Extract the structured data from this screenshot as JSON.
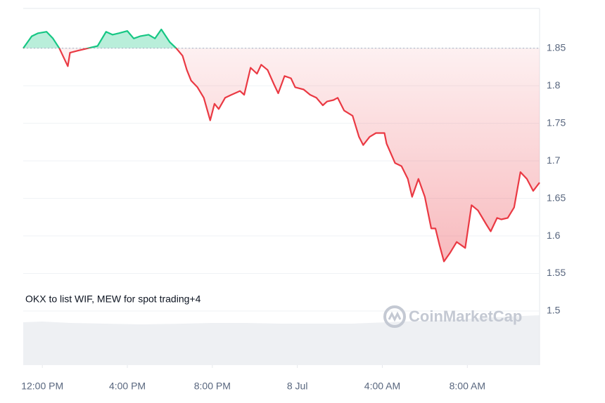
{
  "chart_data": {
    "type": "line",
    "annotation": "OKX to list WIF, MEW for spot trading+4",
    "watermark": "CoinMarketCap",
    "up_color": "#16c784",
    "down_color": "#ea3943",
    "baseline": 1.85,
    "grid": true,
    "xlim": [
      -0.9,
      23.4
    ],
    "xticks": [
      {
        "value": 0,
        "label": "12:00 PM"
      },
      {
        "value": 4,
        "label": "4:00 PM"
      },
      {
        "value": 8,
        "label": "8:00 PM"
      },
      {
        "value": 12,
        "label": "8 Jul"
      },
      {
        "value": 16,
        "label": "4:00 AM"
      },
      {
        "value": 20,
        "label": "8:00 AM"
      }
    ],
    "ylim": [
      1.428,
      1.903
    ],
    "yticks": [
      1.5,
      1.55,
      1.6,
      1.65,
      1.7,
      1.75,
      1.8,
      1.85
    ],
    "x": [
      -0.9,
      -0.5,
      -0.2,
      0.2,
      0.5,
      0.8,
      1.2,
      1.3,
      1.7,
      2.0,
      2.3,
      2.6,
      3.0,
      3.3,
      3.6,
      4.0,
      4.3,
      4.6,
      5.0,
      5.3,
      5.6,
      6.0,
      6.3,
      6.6,
      6.8,
      7.0,
      7.3,
      7.6,
      7.9,
      8.1,
      8.3,
      8.6,
      8.9,
      9.3,
      9.5,
      9.8,
      10.1,
      10.3,
      10.6,
      10.9,
      11.1,
      11.4,
      11.7,
      11.9,
      12.3,
      12.6,
      12.9,
      13.2,
      13.4,
      13.7,
      13.9,
      14.2,
      14.6,
      14.9,
      15.1,
      15.4,
      15.7,
      16.1,
      16.2,
      16.6,
      16.9,
      17.2,
      17.4,
      17.7,
      18.0,
      18.3,
      18.5,
      18.7,
      18.9,
      19.2,
      19.5,
      19.9,
      20.2,
      20.5,
      20.9,
      21.1,
      21.4,
      21.6,
      21.9,
      22.2,
      22.5,
      22.8,
      23.1,
      23.4
    ],
    "values": [
      1.85,
      1.866,
      1.87,
      1.872,
      1.863,
      1.85,
      1.826,
      1.844,
      1.847,
      1.849,
      1.851,
      1.853,
      1.872,
      1.868,
      1.87,
      1.873,
      1.863,
      1.866,
      1.868,
      1.863,
      1.875,
      1.858,
      1.85,
      1.84,
      1.821,
      1.807,
      1.798,
      1.784,
      1.754,
      1.776,
      1.769,
      1.784,
      1.788,
      1.793,
      1.788,
      1.824,
      1.816,
      1.828,
      1.821,
      1.802,
      1.79,
      1.813,
      1.81,
      1.798,
      1.795,
      1.788,
      1.784,
      1.774,
      1.779,
      1.781,
      1.784,
      1.767,
      1.76,
      1.732,
      1.721,
      1.732,
      1.737,
      1.737,
      1.723,
      1.697,
      1.693,
      1.676,
      1.652,
      1.676,
      1.652,
      1.61,
      1.61,
      1.587,
      1.566,
      1.578,
      1.592,
      1.584,
      1.641,
      1.634,
      1.615,
      1.606,
      1.624,
      1.622,
      1.624,
      1.638,
      1.685,
      1.676,
      1.66,
      1.671
    ]
  }
}
